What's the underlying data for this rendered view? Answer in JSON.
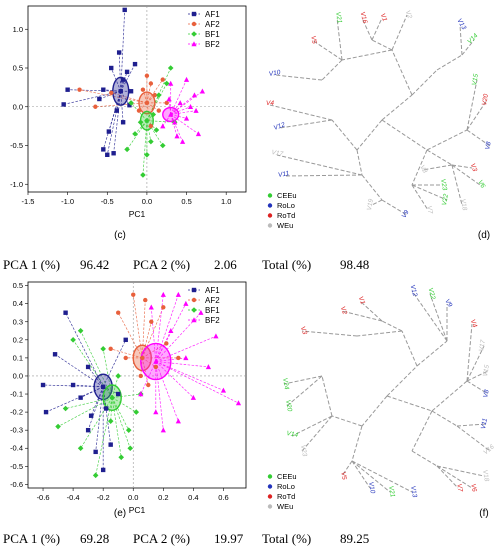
{
  "chart_data": [
    {
      "id": "c",
      "type": "scatter",
      "panel_label": "(c)",
      "xlabel": "PC1",
      "ylabel": "PC2",
      "xlim": [
        -1.5,
        1.25
      ],
      "ylim": [
        -1.1,
        1.3
      ],
      "xticks": [
        -1.5,
        -1.0,
        -0.5,
        0.0,
        0.5,
        1.0
      ],
      "yticks": [
        -1.0,
        -0.5,
        0.0,
        0.5,
        1.0
      ],
      "xtick_labels": [
        "-1.5",
        "-1.0",
        "-0.5",
        "0.0",
        "0.5",
        "1.0"
      ],
      "ytick_labels": [
        "-1.0",
        "-0.5",
        "0.0",
        "0.5",
        "1.0"
      ],
      "legend_position": "top-right",
      "series": [
        {
          "name": "AF1",
          "color": "#1f1f8f",
          "marker": "square",
          "centroid": [
            -0.33,
            0.2
          ],
          "ellipse": [
            0.1,
            0.18
          ],
          "points": [
            [
              -0.28,
              1.25
            ],
            [
              -1.0,
              0.22
            ],
            [
              -1.05,
              0.03
            ],
            [
              -0.55,
              -0.55
            ],
            [
              -0.5,
              -0.62
            ],
            [
              -0.42,
              -0.6
            ],
            [
              -0.6,
              0.1
            ],
            [
              -0.45,
              0.5
            ],
            [
              -0.3,
              0.35
            ],
            [
              -0.25,
              0.45
            ],
            [
              -0.38,
              -0.05
            ],
            [
              -0.2,
              0.2
            ],
            [
              -0.55,
              0.22
            ],
            [
              -0.15,
              0.55
            ],
            [
              -0.35,
              0.7
            ],
            [
              -0.3,
              -0.2
            ],
            [
              -0.48,
              -0.32
            ],
            [
              -0.22,
              0.02
            ]
          ]
        },
        {
          "name": "AF2",
          "color": "#e8603c",
          "marker": "circle",
          "centroid": [
            0.0,
            0.05
          ],
          "ellipse": [
            0.1,
            0.14
          ],
          "points": [
            [
              -0.85,
              0.22
            ],
            [
              -0.65,
              0.0
            ],
            [
              0.05,
              0.3
            ],
            [
              0.15,
              -0.05
            ],
            [
              -0.05,
              0.22
            ],
            [
              0.1,
              0.15
            ],
            [
              -0.1,
              -0.05
            ],
            [
              0.05,
              -0.25
            ],
            [
              0.2,
              0.35
            ],
            [
              -0.45,
              0.18
            ],
            [
              0.25,
              0.05
            ],
            [
              0.0,
              0.4
            ]
          ]
        },
        {
          "name": "BF1",
          "color": "#33cc33",
          "marker": "diamond",
          "centroid": [
            0.0,
            -0.18
          ],
          "ellipse": [
            0.08,
            0.12
          ],
          "points": [
            [
              -0.05,
              -0.88
            ],
            [
              0.0,
              -0.62
            ],
            [
              -0.25,
              -0.55
            ],
            [
              0.2,
              -0.5
            ],
            [
              -0.15,
              -0.35
            ],
            [
              0.12,
              -0.3
            ],
            [
              0.25,
              0.3
            ],
            [
              0.3,
              0.5
            ],
            [
              0.08,
              -0.1
            ],
            [
              -0.08,
              -0.2
            ],
            [
              0.15,
              0.15
            ],
            [
              -0.2,
              0.05
            ],
            [
              0.35,
              -0.2
            ],
            [
              0.05,
              -0.45
            ]
          ]
        },
        {
          "name": "BF2",
          "color": "#ff00ff",
          "marker": "triangle",
          "centroid": [
            0.3,
            -0.1
          ],
          "ellipse": [
            0.1,
            0.09
          ],
          "points": [
            [
              0.7,
              0.2
            ],
            [
              0.65,
              -0.35
            ],
            [
              0.5,
              0.35
            ],
            [
              0.45,
              -0.45
            ],
            [
              0.55,
              0.0
            ],
            [
              0.3,
              0.3
            ],
            [
              0.6,
              0.15
            ],
            [
              0.2,
              -0.25
            ],
            [
              0.35,
              -0.2
            ],
            [
              0.42,
              0.05
            ],
            [
              0.5,
              -0.15
            ],
            [
              0.28,
              0.1
            ],
            [
              0.62,
              -0.05
            ],
            [
              0.38,
              -0.38
            ]
          ]
        }
      ],
      "stats": {
        "pc1_label": "PCA 1 (%)",
        "pc1": "96.42",
        "pc2_label": "PCA 2 (%)",
        "pc2": "2.06",
        "total_label": "Total (%)",
        "total": "98.48"
      }
    },
    {
      "id": "e",
      "type": "scatter",
      "panel_label": "(e)",
      "xlabel": "PC1",
      "ylabel": "PC2",
      "xlim": [
        -0.7,
        0.75
      ],
      "ylim": [
        -0.62,
        0.52
      ],
      "xticks": [
        -0.6,
        -0.4,
        -0.2,
        0.0,
        0.2,
        0.4,
        0.6
      ],
      "yticks": [
        -0.6,
        -0.5,
        -0.4,
        -0.3,
        -0.2,
        -0.1,
        0.0,
        0.1,
        0.2,
        0.3,
        0.4,
        0.5
      ],
      "xtick_labels": [
        "-0.6",
        "-0.4",
        "-0.2",
        "0.0",
        "0.2",
        "0.4",
        "0.6"
      ],
      "ytick_labels": [
        "-0.6",
        "-0.5",
        "-0.4",
        "-0.3",
        "-0.2",
        "-0.1",
        "0.0",
        "0.1",
        "0.2",
        "0.3",
        "0.4",
        "0.5"
      ],
      "legend_position": "top-right",
      "series": [
        {
          "name": "AF1",
          "color": "#1f1f8f",
          "marker": "square",
          "centroid": [
            -0.2,
            -0.06
          ],
          "ellipse": [
            0.06,
            0.07
          ],
          "points": [
            [
              -0.52,
              0.12
            ],
            [
              -0.6,
              -0.05
            ],
            [
              -0.58,
              -0.2
            ],
            [
              -0.45,
              0.35
            ],
            [
              -0.35,
              -0.12
            ],
            [
              -0.3,
              -0.3
            ],
            [
              -0.25,
              -0.42
            ],
            [
              -0.2,
              -0.52
            ],
            [
              -0.15,
              -0.38
            ],
            [
              -0.3,
              0.05
            ],
            [
              -0.4,
              -0.05
            ],
            [
              -0.18,
              -0.18
            ],
            [
              -0.28,
              -0.22
            ],
            [
              -0.1,
              -0.1
            ],
            [
              -0.05,
              0.2
            ]
          ]
        },
        {
          "name": "AF2",
          "color": "#e8603c",
          "marker": "circle",
          "centroid": [
            0.06,
            0.1
          ],
          "ellipse": [
            0.06,
            0.07
          ],
          "points": [
            [
              -0.1,
              0.35
            ],
            [
              0.0,
              0.45
            ],
            [
              0.08,
              0.42
            ],
            [
              0.2,
              0.38
            ],
            [
              0.12,
              0.3
            ],
            [
              -0.15,
              0.15
            ],
            [
              0.05,
              0.0
            ],
            [
              0.15,
              0.05
            ],
            [
              0.22,
              0.18
            ],
            [
              0.3,
              0.1
            ],
            [
              -0.05,
              0.1
            ],
            [
              0.1,
              -0.05
            ]
          ]
        },
        {
          "name": "BF1",
          "color": "#33cc33",
          "marker": "diamond",
          "centroid": [
            -0.14,
            -0.12
          ],
          "ellipse": [
            0.06,
            0.07
          ],
          "points": [
            [
              -0.5,
              -0.28
            ],
            [
              -0.45,
              -0.18
            ],
            [
              -0.35,
              -0.4
            ],
            [
              -0.25,
              -0.55
            ],
            [
              -0.08,
              -0.45
            ],
            [
              -0.03,
              -0.3
            ],
            [
              0.02,
              -0.2
            ],
            [
              -0.2,
              0.15
            ],
            [
              -0.35,
              0.25
            ],
            [
              -0.1,
              0.0
            ],
            [
              -0.15,
              -0.25
            ],
            [
              0.05,
              -0.1
            ],
            [
              -0.4,
              0.2
            ],
            [
              -0.02,
              -0.4
            ]
          ]
        },
        {
          "name": "BF2",
          "color": "#ff00ff",
          "marker": "triangle",
          "centroid": [
            0.15,
            0.08
          ],
          "ellipse": [
            0.1,
            0.1
          ],
          "points": [
            [
              0.7,
              -0.15
            ],
            [
              0.6,
              -0.08
            ],
            [
              0.55,
              0.22
            ],
            [
              0.45,
              0.35
            ],
            [
              0.35,
              0.4
            ],
            [
              0.3,
              0.45
            ],
            [
              0.2,
              0.45
            ],
            [
              0.12,
              0.38
            ],
            [
              0.4,
              -0.12
            ],
            [
              0.3,
              -0.25
            ],
            [
              0.2,
              -0.3
            ],
            [
              0.05,
              -0.1
            ],
            [
              0.5,
              0.05
            ],
            [
              0.25,
              0.25
            ],
            [
              0.35,
              0.1
            ],
            [
              0.15,
              -0.2
            ]
          ]
        }
      ],
      "stats": {
        "pc1_label": "PCA 1 (%)",
        "pc1": "69.28",
        "pc2_label": "PCA 2 (%)",
        "pc2": "19.97",
        "total_label": "Total (%)",
        "total": "89.25"
      }
    }
  ],
  "dendrograms": [
    {
      "id": "d",
      "panel_label": "(d)",
      "legend": [
        {
          "name": "CEEu",
          "color": "#33cc33"
        },
        {
          "name": "RoLo",
          "color": "#2233bb"
        },
        {
          "name": "RoTd",
          "color": "#dd2222"
        },
        {
          "name": "WEu",
          "color": "#bbbbbb"
        }
      ],
      "tip_labels": [
        "V9",
        "V1",
        "V13",
        "V14",
        "V16",
        "V3",
        "V5",
        "V21",
        "V15",
        "V20",
        "V10",
        "V4",
        "V12",
        "V17",
        "V8",
        "V2",
        "V6",
        "V22",
        "V11",
        "V7",
        "V18",
        "V19",
        "V23",
        "V8"
      ]
    },
    {
      "id": "f",
      "panel_label": "(f)",
      "legend": [
        {
          "name": "CEEu",
          "color": "#33cc33"
        },
        {
          "name": "RoLo",
          "color": "#2233bb"
        },
        {
          "name": "RoTd",
          "color": "#dd2222"
        },
        {
          "name": "WEu",
          "color": "#bbbbbb"
        }
      ],
      "tip_labels": [
        "V12",
        "V22",
        "V9",
        "V1",
        "V2",
        "V4",
        "V3",
        "V17",
        "V15",
        "V8",
        "V11",
        "V16",
        "V18",
        "V6",
        "V7",
        "V13",
        "V21",
        "V10",
        "V5",
        "V23",
        "V20",
        "V24",
        "V14"
      ]
    }
  ]
}
